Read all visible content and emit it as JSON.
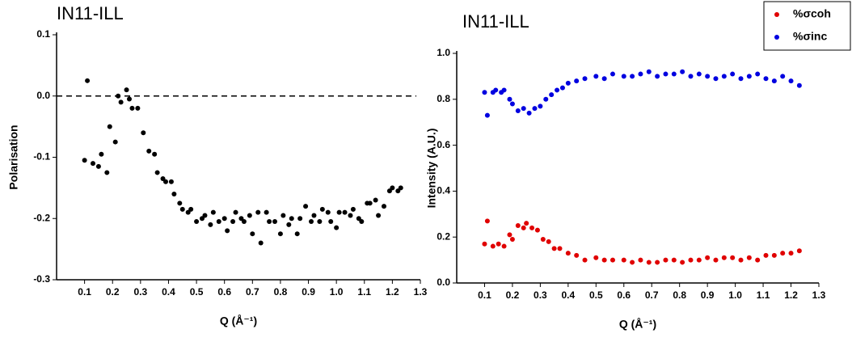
{
  "chart_data": [
    {
      "type": "scatter",
      "title": "IN11-ILL",
      "xlabel": "Q (Å⁻¹)",
      "ylabel": "Polarisation",
      "xlim": [
        0,
        1.3
      ],
      "ylim": [
        -0.3,
        0.1
      ],
      "xticks": [
        0.1,
        0.2,
        0.3,
        0.4,
        0.5,
        0.6,
        0.7,
        0.8,
        0.9,
        {
          "value": 1,
          "label": "1.0"
        },
        1.1,
        1.2,
        1.3
      ],
      "yticks": [
        -0.3,
        -0.2,
        -0.1,
        {
          "value": 0,
          "label": "0.0"
        },
        0.1
      ],
      "hline": 0,
      "series": [
        {
          "color": "#000000",
          "x": [
            0.1,
            0.11,
            0.13,
            0.15,
            0.16,
            0.18,
            0.19,
            0.21,
            0.22,
            0.23,
            0.25,
            0.26,
            0.27,
            0.29,
            0.31,
            0.33,
            0.35,
            0.36,
            0.38,
            0.39,
            0.41,
            0.42,
            0.44,
            0.45,
            0.47,
            0.48,
            0.5,
            0.52,
            0.53,
            0.55,
            0.56,
            0.58,
            0.6,
            0.61,
            0.63,
            0.64,
            0.66,
            0.67,
            0.69,
            0.7,
            0.72,
            0.73,
            0.75,
            0.76,
            0.78,
            0.8,
            0.81,
            0.83,
            0.84,
            0.86,
            0.87,
            0.89,
            0.91,
            0.92,
            0.94,
            0.95,
            0.97,
            0.98,
            1.0,
            1.01,
            1.03,
            1.05,
            1.06,
            1.08,
            1.09,
            1.11,
            1.12,
            1.14,
            1.15,
            1.17,
            1.19,
            1.2,
            1.22,
            1.23
          ],
          "values": [
            -0.105,
            0.025,
            -0.11,
            -0.115,
            -0.095,
            -0.125,
            -0.05,
            -0.075,
            0.0,
            -0.01,
            0.01,
            -0.005,
            -0.02,
            -0.02,
            -0.06,
            -0.09,
            -0.095,
            -0.125,
            -0.135,
            -0.14,
            -0.14,
            -0.16,
            -0.175,
            -0.185,
            -0.19,
            -0.185,
            -0.205,
            -0.2,
            -0.195,
            -0.21,
            -0.19,
            -0.205,
            -0.2,
            -0.22,
            -0.205,
            -0.19,
            -0.2,
            -0.205,
            -0.195,
            -0.225,
            -0.19,
            -0.24,
            -0.19,
            -0.205,
            -0.205,
            -0.225,
            -0.195,
            -0.21,
            -0.2,
            -0.225,
            -0.2,
            -0.18,
            -0.205,
            -0.195,
            -0.205,
            -0.185,
            -0.19,
            -0.205,
            -0.215,
            -0.19,
            -0.19,
            -0.195,
            -0.185,
            -0.2,
            -0.205,
            -0.175,
            -0.175,
            -0.17,
            -0.195,
            -0.18,
            -0.155,
            -0.15,
            -0.155,
            -0.15
          ]
        }
      ]
    },
    {
      "type": "scatter",
      "title": "IN11-ILL",
      "xlabel": "Q (Å⁻¹)",
      "ylabel": "Intensity (A.U.)",
      "xlim": [
        0,
        1.3
      ],
      "ylim": [
        0,
        1
      ],
      "xticks": [
        0.1,
        0.2,
        0.3,
        0.4,
        0.5,
        0.6,
        0.7,
        0.8,
        0.9,
        {
          "value": 1,
          "label": "1.0"
        },
        1.1,
        1.2,
        1.3
      ],
      "yticks": [
        {
          "value": 0,
          "label": "0.0"
        },
        0.2,
        0.4,
        0.6,
        0.8,
        {
          "value": 1,
          "label": "1.0"
        }
      ],
      "legend": "upper right",
      "series": [
        {
          "name": "%σcoh",
          "color": "#e00000",
          "x": [
            0.1,
            0.11,
            0.13,
            0.15,
            0.17,
            0.19,
            0.2,
            0.22,
            0.24,
            0.25,
            0.27,
            0.29,
            0.31,
            0.33,
            0.35,
            0.37,
            0.4,
            0.43,
            0.46,
            0.5,
            0.53,
            0.56,
            0.6,
            0.63,
            0.66,
            0.69,
            0.72,
            0.75,
            0.78,
            0.81,
            0.84,
            0.87,
            0.9,
            0.93,
            0.96,
            0.99,
            1.02,
            1.05,
            1.08,
            1.11,
            1.14,
            1.17,
            1.2,
            1.23
          ],
          "values": [
            0.17,
            0.27,
            0.16,
            0.17,
            0.16,
            0.21,
            0.19,
            0.25,
            0.24,
            0.26,
            0.24,
            0.23,
            0.19,
            0.18,
            0.15,
            0.15,
            0.13,
            0.12,
            0.1,
            0.11,
            0.1,
            0.1,
            0.1,
            0.09,
            0.1,
            0.09,
            0.09,
            0.1,
            0.1,
            0.09,
            0.1,
            0.1,
            0.11,
            0.1,
            0.11,
            0.11,
            0.1,
            0.11,
            0.1,
            0.12,
            0.12,
            0.13,
            0.13,
            0.14
          ]
        },
        {
          "name": "%σinc",
          "color": "#0000e0",
          "x": [
            0.1,
            0.11,
            0.13,
            0.14,
            0.16,
            0.17,
            0.19,
            0.2,
            0.22,
            0.24,
            0.26,
            0.28,
            0.3,
            0.32,
            0.34,
            0.36,
            0.38,
            0.4,
            0.43,
            0.46,
            0.5,
            0.53,
            0.56,
            0.6,
            0.63,
            0.66,
            0.69,
            0.72,
            0.75,
            0.78,
            0.81,
            0.84,
            0.87,
            0.9,
            0.93,
            0.96,
            0.99,
            1.02,
            1.05,
            1.08,
            1.11,
            1.14,
            1.17,
            1.2,
            1.23
          ],
          "values": [
            0.83,
            0.73,
            0.83,
            0.84,
            0.83,
            0.84,
            0.8,
            0.78,
            0.75,
            0.76,
            0.74,
            0.76,
            0.77,
            0.8,
            0.82,
            0.84,
            0.85,
            0.87,
            0.88,
            0.89,
            0.9,
            0.89,
            0.91,
            0.9,
            0.9,
            0.91,
            0.92,
            0.9,
            0.91,
            0.91,
            0.92,
            0.9,
            0.91,
            0.9,
            0.89,
            0.9,
            0.91,
            0.89,
            0.9,
            0.91,
            0.89,
            0.88,
            0.9,
            0.88,
            0.86
          ]
        }
      ]
    }
  ]
}
